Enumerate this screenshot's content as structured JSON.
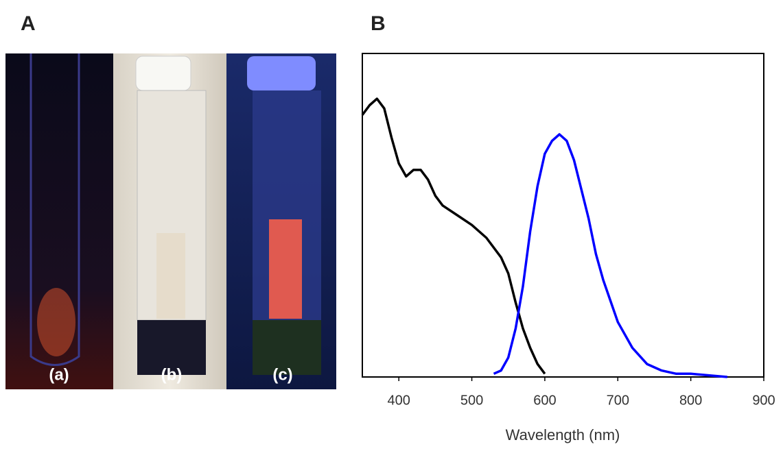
{
  "figure": {
    "panel_labels": [
      "A",
      "B"
    ],
    "photo_labels": [
      "(a)",
      "(b)",
      "(c)"
    ]
  },
  "chart_data": {
    "type": "line",
    "x_label": "Wavelength (nm)",
    "xlim": [
      350,
      900
    ],
    "xticks": [
      400,
      500,
      600,
      700,
      800,
      900
    ],
    "ylim": [
      0,
      1
    ],
    "series": [
      {
        "color": "#000000",
        "x": [
          350,
          360,
          370,
          380,
          390,
          400,
          410,
          420,
          430,
          440,
          450,
          460,
          480,
          500,
          520,
          540,
          550,
          560,
          570,
          580,
          590,
          600
        ],
        "values": [
          0.81,
          0.84,
          0.86,
          0.83,
          0.74,
          0.66,
          0.62,
          0.64,
          0.64,
          0.61,
          0.56,
          0.53,
          0.5,
          0.47,
          0.43,
          0.37,
          0.32,
          0.23,
          0.15,
          0.09,
          0.04,
          0.01
        ]
      },
      {
        "color": "#0000ff",
        "x": [
          530,
          540,
          550,
          560,
          570,
          580,
          590,
          600,
          610,
          620,
          630,
          640,
          650,
          660,
          670,
          680,
          700,
          720,
          740,
          760,
          780,
          800,
          850
        ],
        "values": [
          0.01,
          0.02,
          0.06,
          0.15,
          0.28,
          0.45,
          0.59,
          0.69,
          0.73,
          0.75,
          0.73,
          0.67,
          0.58,
          0.49,
          0.38,
          0.3,
          0.17,
          0.09,
          0.04,
          0.02,
          0.01,
          0.01,
          0
        ]
      }
    ]
  }
}
